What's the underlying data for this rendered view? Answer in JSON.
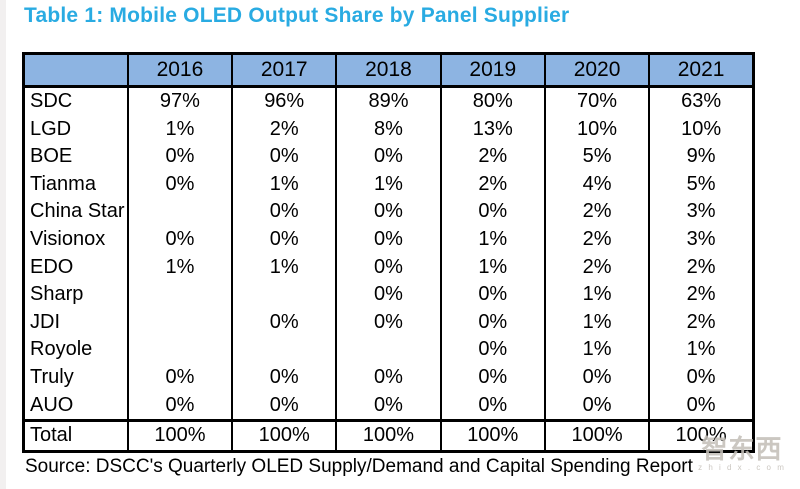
{
  "chart_data": {
    "type": "table",
    "title": "Table 1: Mobile OLED Output Share by Panel Supplier",
    "corner_label": "",
    "year_headers": [
      "2016",
      "2017",
      "2018",
      "2019",
      "2020",
      "2021"
    ],
    "rows": [
      {
        "supplier": "SDC",
        "values": [
          "97%",
          "96%",
          "89%",
          "80%",
          "70%",
          "63%"
        ]
      },
      {
        "supplier": "LGD",
        "values": [
          "1%",
          "2%",
          "8%",
          "13%",
          "10%",
          "10%"
        ]
      },
      {
        "supplier": "BOE",
        "values": [
          "0%",
          "0%",
          "0%",
          "2%",
          "5%",
          "9%"
        ]
      },
      {
        "supplier": "Tianma",
        "values": [
          "0%",
          "1%",
          "1%",
          "2%",
          "4%",
          "5%"
        ]
      },
      {
        "supplier": "China Star",
        "values": [
          "",
          "0%",
          "0%",
          "0%",
          "2%",
          "3%"
        ]
      },
      {
        "supplier": "Visionox",
        "values": [
          "0%",
          "0%",
          "0%",
          "1%",
          "2%",
          "3%"
        ]
      },
      {
        "supplier": "EDO",
        "values": [
          "1%",
          "1%",
          "0%",
          "1%",
          "2%",
          "2%"
        ]
      },
      {
        "supplier": "Sharp",
        "values": [
          "",
          "",
          "0%",
          "0%",
          "1%",
          "2%"
        ]
      },
      {
        "supplier": "JDI",
        "values": [
          "",
          "0%",
          "0%",
          "0%",
          "1%",
          "2%"
        ]
      },
      {
        "supplier": "Royole",
        "values": [
          "",
          "",
          "",
          "0%",
          "1%",
          "1%"
        ]
      },
      {
        "supplier": "Truly",
        "values": [
          "0%",
          "0%",
          "0%",
          "0%",
          "0%",
          "0%"
        ]
      },
      {
        "supplier": "AUO",
        "values": [
          "0%",
          "0%",
          "0%",
          "0%",
          "0%",
          "0%"
        ]
      }
    ],
    "total_row": {
      "supplier": "Total",
      "values": [
        "100%",
        "100%",
        "100%",
        "100%",
        "100%",
        "100%"
      ]
    },
    "source": "Source: DSCC's Quarterly OLED Supply/Demand and Capital Spending Report",
    "layout": {
      "header_background": "#8DB4E2",
      "grid": "vertical-only",
      "legend": "none"
    }
  },
  "colors": {
    "title_accent": "#29ABE2",
    "header_bg": "#8DB4E2",
    "border": "#000000"
  },
  "watermark": {
    "logo_text": "智东西",
    "url_text": "z h i d x . c o m"
  }
}
